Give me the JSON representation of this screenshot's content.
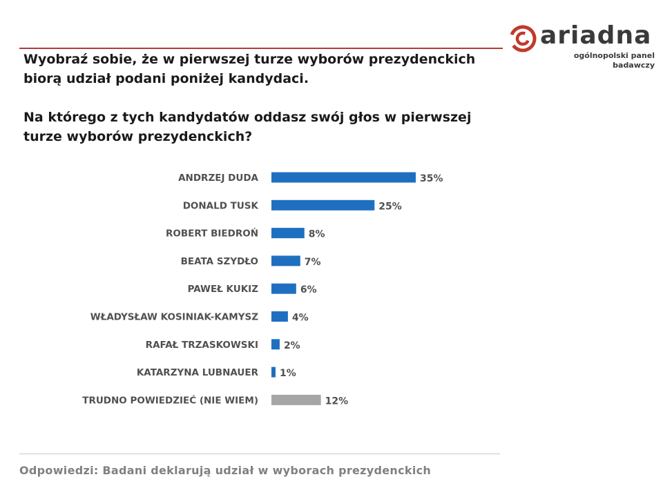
{
  "logo": {
    "wordmark": "ariadna",
    "tagline": "ogólnopolski panel badawczy",
    "brand_color": "#c0392b"
  },
  "question": {
    "line1": "Wyobraź sobie, że w pierwszej turze wyborów prezydenckich biorą udział podani poniżej kandydaci.",
    "line2": "Na którego z tych kandydatów oddasz swój głos w pierwszej turze wyborów prezydenckich?"
  },
  "chart_data": {
    "type": "bar",
    "orientation": "horizontal",
    "categories": [
      "ANDRZEJ DUDA",
      "DONALD TUSK",
      "ROBERT BIEDROŃ",
      "BEATA SZYDŁO",
      "PAWEŁ KUKIZ",
      "WŁADYSŁAW KOSINIAK-KAMYSZ",
      "RAFAŁ TRZASKOWSKI",
      "KATARZYNA LUBNAUER",
      "TRUDNO POWIEDZIEĆ (NIE WIEM)"
    ],
    "values": [
      35,
      25,
      8,
      7,
      6,
      4,
      2,
      1,
      12
    ],
    "value_labels": [
      "35%",
      "25%",
      "8%",
      "7%",
      "6%",
      "4%",
      "2%",
      "1%",
      "12%"
    ],
    "bar_colors": [
      "#1f6fc1",
      "#1f6fc1",
      "#1f6fc1",
      "#1f6fc1",
      "#1f6fc1",
      "#1f6fc1",
      "#1f6fc1",
      "#1f6fc1",
      "#a6a6a6"
    ],
    "xlim": [
      0,
      35
    ],
    "grid": false,
    "legend": "none"
  },
  "footer": {
    "text": "Odpowiedzi: Badani deklarują udział w wyborach prezydenckich"
  }
}
